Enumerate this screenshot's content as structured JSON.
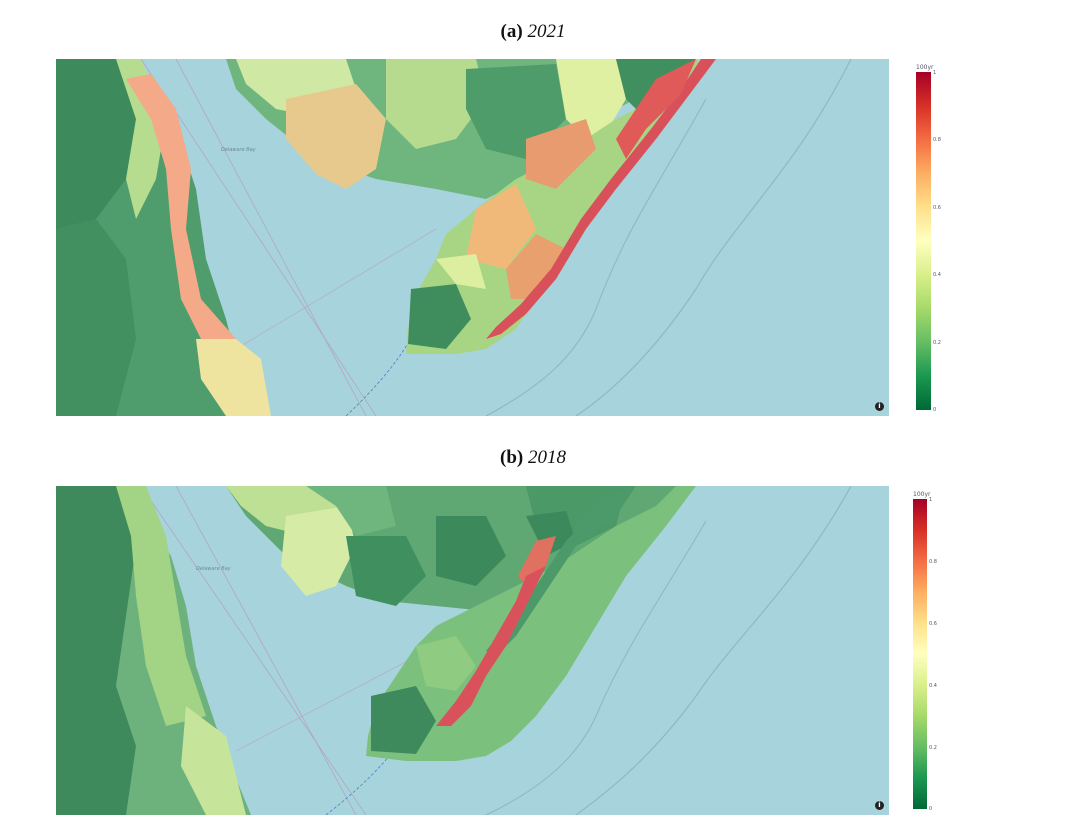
{
  "panels": [
    {
      "letter": "(a)",
      "year": "2021",
      "map_label": "Delaware Bay",
      "info_icon": "info-icon",
      "colorbar": {
        "title": "100yr",
        "ticks": [
          "1",
          "0.8",
          "0.6",
          "0.4",
          "0.2",
          "0"
        ]
      }
    },
    {
      "letter": "(b)",
      "year": "2018",
      "map_label": "Delaware Bay",
      "info_icon": "info-icon",
      "colorbar": {
        "title": "100yr",
        "ticks": [
          "1",
          "0.8",
          "0.6",
          "0.4",
          "0.2",
          "0"
        ]
      }
    }
  ],
  "colorscale": [
    "#006837",
    "#1a9850",
    "#66bd63",
    "#a6d96a",
    "#d9ef8b",
    "#ffffbf",
    "#fee08b",
    "#fdae61",
    "#f46d43",
    "#d73027",
    "#a50026"
  ],
  "colors": {
    "water": "#a7d3dc",
    "land_base": "#5aa775"
  }
}
